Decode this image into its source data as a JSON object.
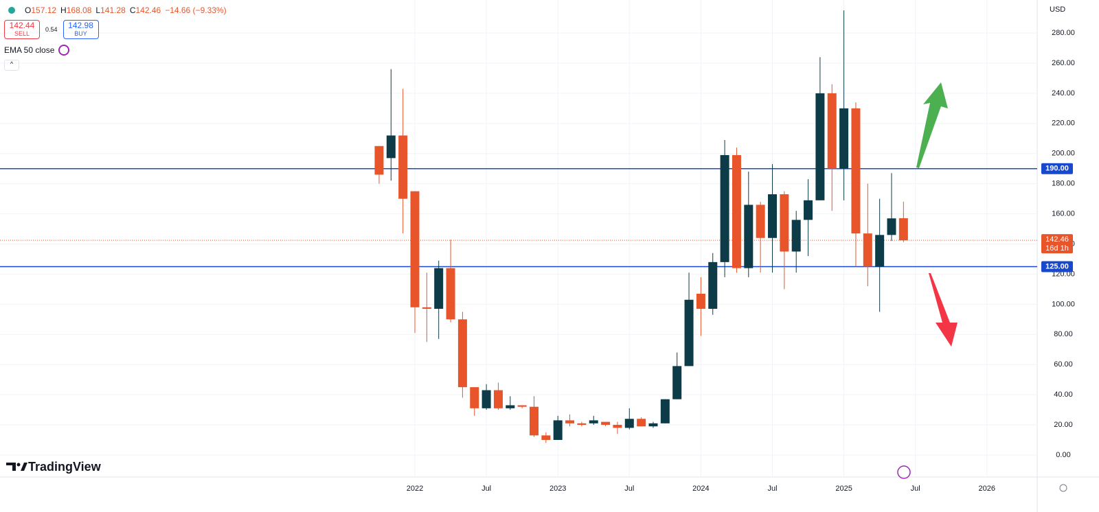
{
  "toolbar": {
    "ohlc": [
      {
        "label": "O",
        "value": "157.12"
      },
      {
        "label": "H",
        "value": "168.08"
      },
      {
        "label": "L",
        "value": "141.28"
      },
      {
        "label": "C",
        "value": "142.46"
      }
    ],
    "change": "−14.66 (−9.33%)",
    "sell_price": "142.44",
    "sell": "SELL",
    "spread": "0.54",
    "buy_price": "142.98",
    "buy": "BUY",
    "indicator": "EMA 50 close",
    "currency": "USD",
    "brand": "TradingView"
  },
  "chart_data": {
    "type": "candlestick",
    "x": [
      "2021-10",
      "2021-11",
      "2021-12",
      "2022-01",
      "2022-02",
      "2022-03",
      "2022-04",
      "2022-05",
      "2022-06",
      "2022-07",
      "2022-08",
      "2022-09",
      "2022-10",
      "2022-11",
      "2022-12",
      "2023-01",
      "2023-02",
      "2023-03",
      "2023-04",
      "2023-05",
      "2023-06",
      "2023-07",
      "2023-08",
      "2023-09",
      "2023-10",
      "2023-11",
      "2023-12",
      "2024-01",
      "2024-02",
      "2024-03",
      "2024-04",
      "2024-05",
      "2024-06",
      "2024-07",
      "2024-08",
      "2024-09",
      "2024-10",
      "2024-11",
      "2024-12",
      "2025-01",
      "2025-02",
      "2025-03",
      "2025-04",
      "2025-05",
      "2025-06"
    ],
    "open": [
      205,
      197,
      212,
      175,
      98,
      97,
      124,
      90,
      45,
      31,
      43,
      31,
      33,
      32,
      13,
      10,
      23,
      21,
      21,
      22,
      20,
      18,
      24,
      19,
      21,
      37,
      59,
      107,
      97,
      128,
      199,
      124,
      166,
      144,
      173,
      135,
      156,
      169,
      240,
      190,
      230,
      147,
      125,
      146,
      157.12
    ],
    "high": [
      205,
      256,
      243,
      175,
      121,
      129,
      143,
      95,
      45,
      47,
      48,
      39,
      33,
      39,
      15,
      26,
      27,
      22,
      26,
      22,
      22,
      31,
      25,
      22,
      37,
      68,
      121,
      118,
      134,
      209,
      204,
      188,
      168,
      193,
      175,
      162,
      183,
      264,
      246,
      295,
      234,
      180,
      170,
      187,
      168.08
    ],
    "low": [
      180,
      182,
      147,
      81,
      75,
      77,
      88,
      38,
      26,
      30,
      30,
      30,
      31,
      12,
      8,
      10,
      19,
      19,
      20,
      19,
      14,
      17,
      19,
      18,
      21,
      37,
      59,
      79,
      93,
      118,
      121,
      118,
      121,
      121,
      110,
      121,
      132,
      169,
      162,
      169,
      125,
      112,
      95,
      142,
      141.28
    ],
    "close": [
      186,
      212,
      170,
      98,
      97,
      124,
      90,
      45,
      31,
      43,
      31,
      33,
      32,
      13,
      10,
      23,
      21,
      20,
      23,
      20,
      18,
      24,
      19,
      21,
      37,
      59,
      103,
      97,
      128,
      199,
      124,
      166,
      144,
      173,
      135,
      156,
      169,
      240,
      190,
      230,
      147,
      125,
      146,
      157,
      142.46
    ],
    "up_color": "#0d3b47",
    "down_color": "#e8552a",
    "ylim": [
      -14.6,
      301.9
    ],
    "yticks": [
      {
        "value": 0,
        "label": "0.00"
      },
      {
        "value": 20,
        "label": "20.00"
      },
      {
        "value": 40,
        "label": "40.00"
      },
      {
        "value": 60,
        "label": "60.00"
      },
      {
        "value": 80,
        "label": "80.00"
      },
      {
        "value": 100,
        "label": "100.00"
      },
      {
        "value": 120,
        "label": "120.00"
      },
      {
        "value": 140,
        "label": "140.00"
      },
      {
        "value": 160,
        "label": "160.00"
      },
      {
        "value": 180,
        "label": "180.00"
      },
      {
        "value": 200,
        "label": "200.00"
      },
      {
        "value": 220,
        "label": "220.00"
      },
      {
        "value": 240,
        "label": "240.00"
      },
      {
        "value": 260,
        "label": "260.00"
      },
      {
        "value": 280,
        "label": "280.00"
      }
    ],
    "xticks": [
      {
        "value": "2022-01",
        "label": "2022"
      },
      {
        "value": "2022-07",
        "label": "Jul"
      },
      {
        "value": "2023-01",
        "label": "2023"
      },
      {
        "value": "2023-07",
        "label": "Jul"
      },
      {
        "value": "2024-01",
        "label": "2024"
      },
      {
        "value": "2024-07",
        "label": "Jul"
      },
      {
        "value": "2025-01",
        "label": "2025"
      },
      {
        "value": "2025-07",
        "label": "Jul"
      },
      {
        "value": "2026-01",
        "label": "2026"
      }
    ],
    "grid": true,
    "levels": [
      {
        "value": 190,
        "label": "190.00",
        "color": "#1848cc"
      },
      {
        "value": 125,
        "label": "125.00",
        "color": "#1848cc"
      }
    ],
    "last_price": {
      "value": 142.46,
      "label": "142.46",
      "countdown": "16d 1h",
      "color": "#e8552a"
    }
  }
}
